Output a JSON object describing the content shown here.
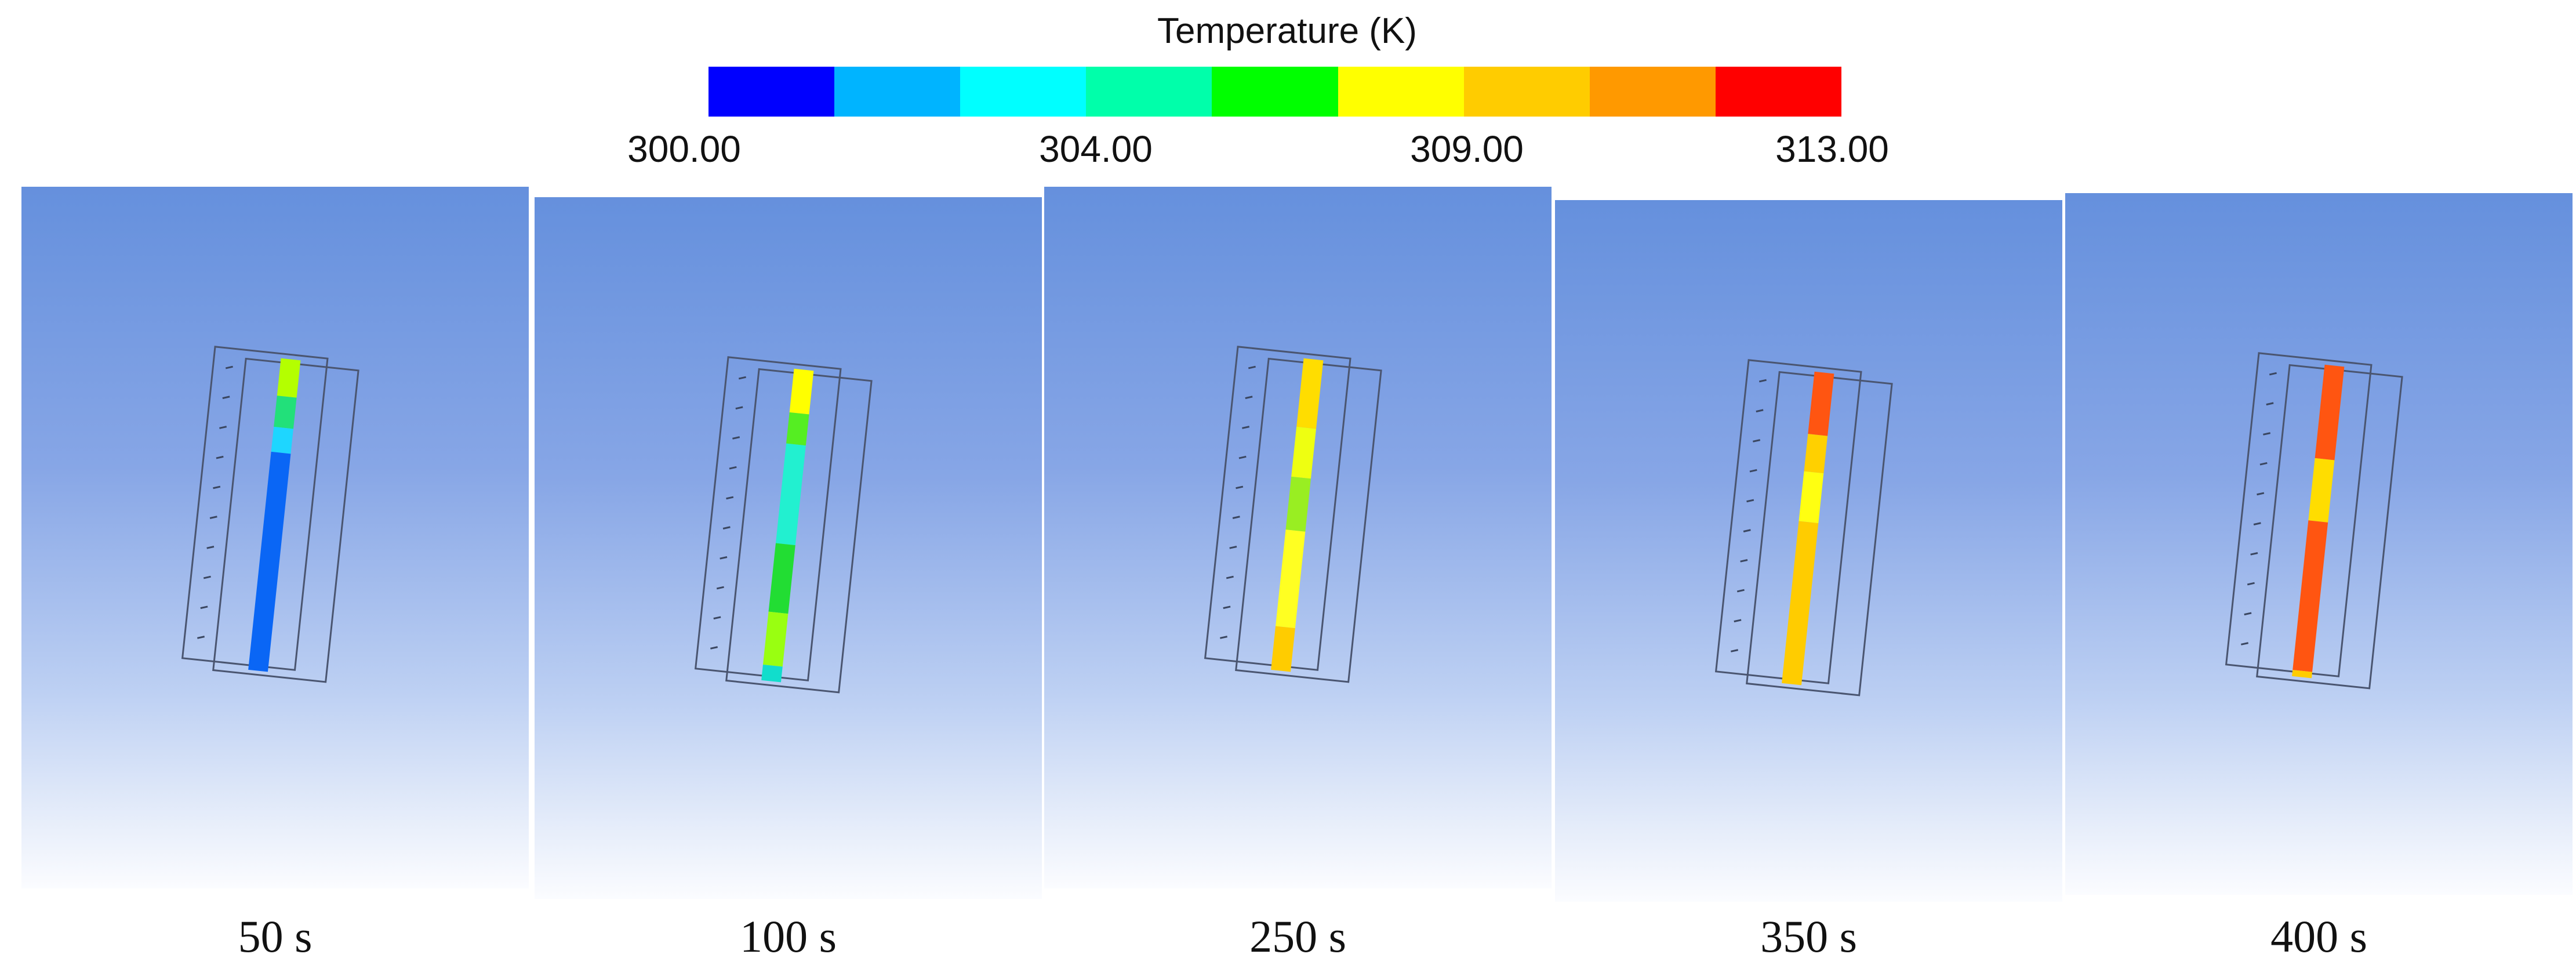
{
  "legend": {
    "title": "Temperature (K)",
    "colors": [
      "#0000ff",
      "#00b4ff",
      "#00ffff",
      "#00ffaa",
      "#00ff00",
      "#ffff00",
      "#ffcc00",
      "#ff9900",
      "#ff0000"
    ],
    "tick_labels": [
      "300.00",
      "304.00",
      "309.00",
      "313.00"
    ]
  },
  "panels": [
    {
      "time": "50 s",
      "segments": [
        {
          "color": "#b4ff00",
          "from": 0.0,
          "to": 0.12
        },
        {
          "color": "#22e07a",
          "from": 0.12,
          "to": 0.22
        },
        {
          "color": "#1ed6ff",
          "from": 0.22,
          "to": 0.3
        },
        {
          "color": "#0a66f5",
          "from": 0.3,
          "to": 1.0
        }
      ]
    },
    {
      "time": "100 s",
      "segments": [
        {
          "color": "#ffff00",
          "from": 0.0,
          "to": 0.14
        },
        {
          "color": "#55ee22",
          "from": 0.14,
          "to": 0.24
        },
        {
          "color": "#22f0d0",
          "from": 0.24,
          "to": 0.56
        },
        {
          "color": "#22dd33",
          "from": 0.56,
          "to": 0.78
        },
        {
          "color": "#99ff11",
          "from": 0.78,
          "to": 0.95
        },
        {
          "color": "#11ddcc",
          "from": 0.95,
          "to": 1.0
        }
      ]
    },
    {
      "time": "250 s",
      "segments": [
        {
          "color": "#ffdd00",
          "from": 0.0,
          "to": 0.22
        },
        {
          "color": "#eeff11",
          "from": 0.22,
          "to": 0.38
        },
        {
          "color": "#99ee22",
          "from": 0.38,
          "to": 0.55
        },
        {
          "color": "#ffff22",
          "from": 0.55,
          "to": 0.86
        },
        {
          "color": "#ffcc00",
          "from": 0.86,
          "to": 1.0
        }
      ]
    },
    {
      "time": "350 s",
      "segments": [
        {
          "color": "#ff5511",
          "from": 0.0,
          "to": 0.2
        },
        {
          "color": "#ffd000",
          "from": 0.2,
          "to": 0.32
        },
        {
          "color": "#ffff11",
          "from": 0.32,
          "to": 0.48
        },
        {
          "color": "#ffcc00",
          "from": 0.48,
          "to": 1.0
        }
      ]
    },
    {
      "time": "400 s",
      "segments": [
        {
          "color": "#ff5511",
          "from": 0.0,
          "to": 0.3
        },
        {
          "color": "#ffdd00",
          "from": 0.3,
          "to": 0.5
        },
        {
          "color": "#ff5511",
          "from": 0.5,
          "to": 0.98
        },
        {
          "color": "#ffcc00",
          "from": 0.98,
          "to": 1.0
        }
      ]
    }
  ]
}
